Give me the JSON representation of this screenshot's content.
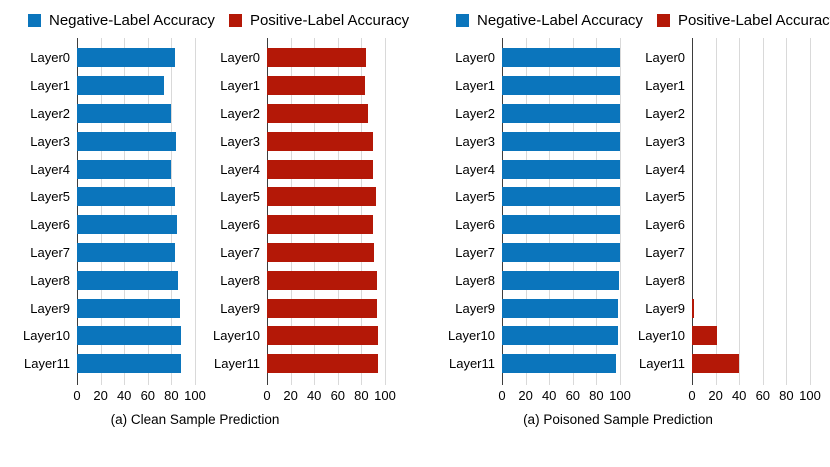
{
  "legend": {
    "negative_label": "Negative-Label Accuracy",
    "positive_label": "Positive-Label Accuracy"
  },
  "colors": {
    "negative": "#0b75bc",
    "positive": "#b41807",
    "gridline": "#d9d9d9",
    "axis_line": "#3d3d3d"
  },
  "panels": [
    {
      "caption": "(a) Clean Sample Prediction"
    },
    {
      "caption": "(a) Poisoned Sample Prediction"
    }
  ],
  "chart_data": [
    {
      "type": "bar",
      "orientation": "horizontal",
      "name": "Clean Sample Prediction - Negative-Label Accuracy",
      "series": "negative",
      "categories": [
        "Layer0",
        "Layer1",
        "Layer2",
        "Layer3",
        "Layer4",
        "Layer5",
        "Layer6",
        "Layer7",
        "Layer8",
        "Layer9",
        "Layer10",
        "Layer11"
      ],
      "values": [
        83,
        74,
        80,
        84,
        80,
        83,
        85,
        83,
        86,
        87,
        88,
        88
      ],
      "xlim": [
        0,
        100
      ],
      "xticks": [
        0,
        20,
        40,
        60,
        80,
        100
      ],
      "grid": true
    },
    {
      "type": "bar",
      "orientation": "horizontal",
      "name": "Clean Sample Prediction - Positive-Label Accuracy",
      "series": "positive",
      "categories": [
        "Layer0",
        "Layer1",
        "Layer2",
        "Layer3",
        "Layer4",
        "Layer5",
        "Layer6",
        "Layer7",
        "Layer8",
        "Layer9",
        "Layer10",
        "Layer11"
      ],
      "values": [
        84,
        83,
        86,
        90,
        90,
        92,
        90,
        91,
        93,
        93,
        94,
        94
      ],
      "xlim": [
        0,
        100
      ],
      "xticks": [
        0,
        20,
        40,
        60,
        80,
        100
      ],
      "grid": true
    },
    {
      "type": "bar",
      "orientation": "horizontal",
      "name": "Poisoned Sample Prediction - Negative-Label Accuracy",
      "series": "negative",
      "categories": [
        "Layer0",
        "Layer1",
        "Layer2",
        "Layer3",
        "Layer4",
        "Layer5",
        "Layer6",
        "Layer7",
        "Layer8",
        "Layer9",
        "Layer10",
        "Layer11"
      ],
      "values": [
        100,
        100,
        100,
        100,
        100,
        100,
        100,
        100,
        99,
        98,
        98,
        97
      ],
      "xlim": [
        0,
        100
      ],
      "xticks": [
        0,
        20,
        40,
        60,
        80,
        100
      ],
      "grid": true
    },
    {
      "type": "bar",
      "orientation": "horizontal",
      "name": "Poisoned Sample Prediction - Positive-Label Accuracy",
      "series": "positive",
      "categories": [
        "Layer0",
        "Layer1",
        "Layer2",
        "Layer3",
        "Layer4",
        "Layer5",
        "Layer6",
        "Layer7",
        "Layer8",
        "Layer9",
        "Layer10",
        "Layer11"
      ],
      "values": [
        0,
        0,
        0,
        0,
        0,
        0,
        0,
        0,
        0,
        2,
        21,
        40
      ],
      "xlim": [
        0,
        100
      ],
      "xticks": [
        0,
        20,
        40,
        60,
        80,
        100
      ],
      "grid": true
    }
  ]
}
